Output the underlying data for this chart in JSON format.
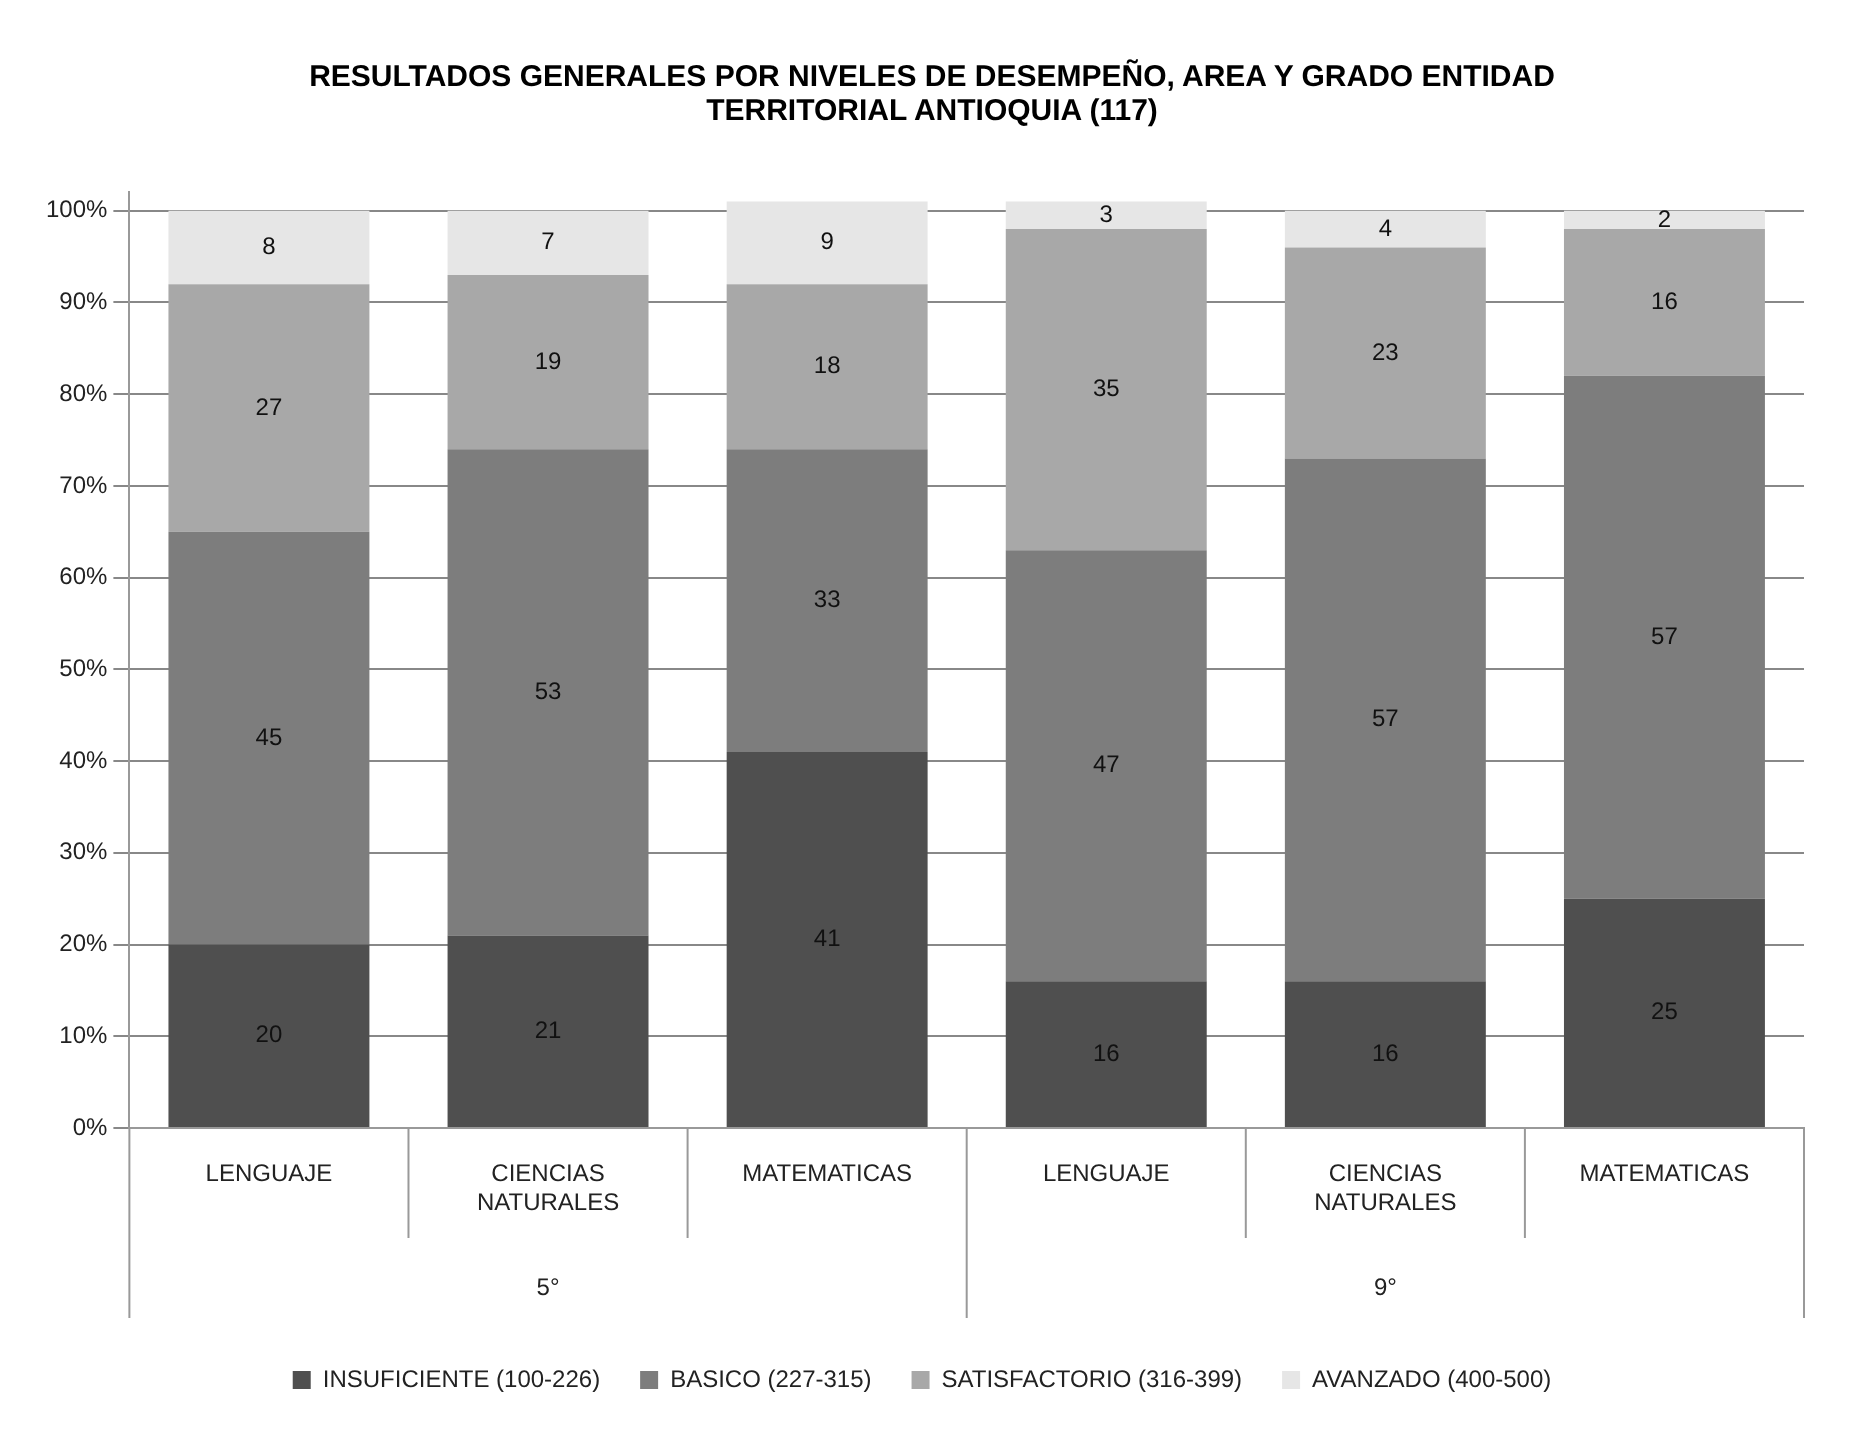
{
  "chart_data": {
    "type": "bar",
    "title": "RESULTADOS GENERALES POR NIVELES DE DESEMPEÑO, AREA Y GRADO ENTIDAD TERRITORIAL ANTIOQUIA (117)",
    "categories": [
      "LENGUAJE",
      "CIENCIAS NATURALES",
      "MATEMATICAS",
      "LENGUAJE",
      "CIENCIAS NATURALES",
      "MATEMATICAS"
    ],
    "annotations": [
      "5°",
      "9°"
    ],
    "stacked": true,
    "series": [
      {
        "name": "INSUFICIENTE (100-226)",
        "color": "#4f4f4f",
        "values": [
          20,
          21,
          41,
          16,
          16,
          25
        ]
      },
      {
        "name": "BASICO (227-315)",
        "color": "#7d7d7d",
        "values": [
          45,
          53,
          33,
          47,
          57,
          57
        ]
      },
      {
        "name": "SATISFACTORIO (316-399)",
        "color": "#a8a8a8",
        "values": [
          27,
          19,
          18,
          35,
          23,
          16
        ]
      },
      {
        "name": "AVANZADO (400-500)",
        "color": "#e6e6e6",
        "values": [
          8,
          7,
          9,
          3,
          4,
          2
        ]
      }
    ],
    "ylim": [
      0,
      102
    ],
    "yticks": [
      {
        "value": 0,
        "label": "0%"
      },
      {
        "value": 10,
        "label": "10%"
      },
      {
        "value": 20,
        "label": "20%"
      },
      {
        "value": 30,
        "label": "30%"
      },
      {
        "value": 40,
        "label": "40%"
      },
      {
        "value": 50,
        "label": "50%"
      },
      {
        "value": 60,
        "label": "60%"
      },
      {
        "value": 70,
        "label": "70%"
      },
      {
        "value": 80,
        "label": "80%"
      },
      {
        "value": 90,
        "label": "90%"
      },
      {
        "value": 100,
        "label": "100%"
      }
    ],
    "grid": "y",
    "legend": "bottom",
    "data_labels": true
  }
}
